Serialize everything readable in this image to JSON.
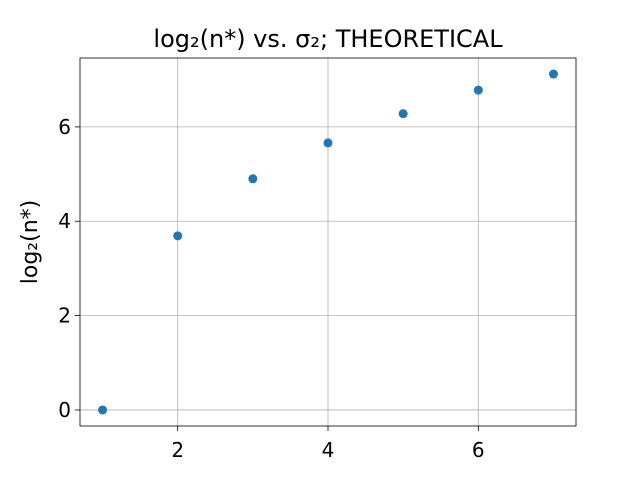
{
  "chart_data": {
    "type": "scatter",
    "title": "log₂(n*) vs. σ₂; THEORETICAL",
    "xlabel": "σ₂",
    "ylabel": "log₂(n*)",
    "x": [
      1,
      2,
      3,
      4,
      5,
      6,
      7
    ],
    "values": [
      0,
      3.69,
      4.9,
      5.66,
      6.28,
      6.78,
      7.12
    ],
    "color": "#1f77b4",
    "xlim": [
      0.7,
      7.3
    ],
    "xticks": [
      2,
      4,
      6
    ],
    "ylim": [
      -0.34,
      7.46
    ],
    "yticks": [
      0,
      2,
      4,
      6
    ],
    "grid": true
  }
}
